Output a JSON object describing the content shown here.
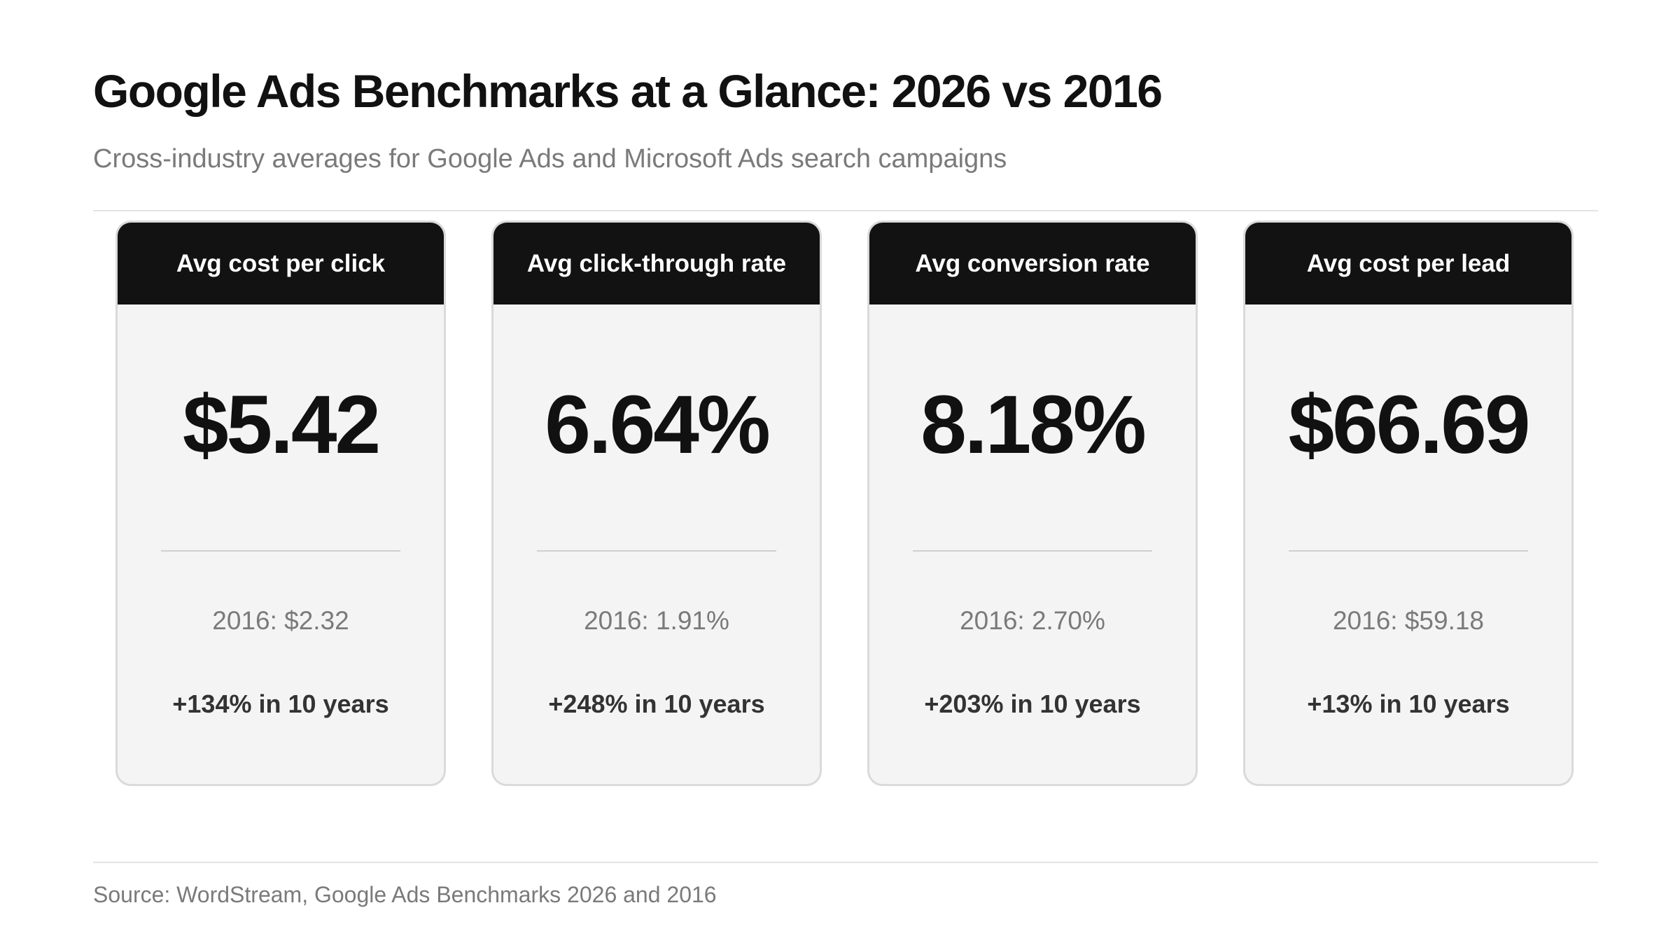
{
  "title": "Google Ads Benchmarks at a Glance: 2026 vs 2016",
  "subtitle": "Cross-industry averages for Google Ads and Microsoft Ads search campaigns",
  "source": "Source: WordStream, Google Ads Benchmarks 2026 and 2016",
  "colors": {
    "header_bg": "#121212",
    "card_bg": "#f4f4f4",
    "card_border": "#dadada",
    "muted_text": "#7a7a7a"
  },
  "chart_data": {
    "type": "table",
    "title": "Google Ads Benchmarks at a Glance: 2026 vs 2016",
    "subtitle": "Cross-industry averages for Google Ads and Microsoft Ads search campaigns",
    "metrics": [
      {
        "label": "Avg cost per click",
        "value_2026": 5.42,
        "value_2016": 2.32,
        "unit": "$",
        "display": "$5.42",
        "prior": "2016: $2.32",
        "change": "+134% in 10 years"
      },
      {
        "label": "Avg click-through rate",
        "value_2026": 6.64,
        "value_2016": 1.91,
        "unit": "%",
        "display": "6.64%",
        "prior": "2016: 1.91%",
        "change": "+248% in 10 years"
      },
      {
        "label": "Avg conversion rate",
        "value_2026": 8.18,
        "value_2016": 2.7,
        "unit": "%",
        "display": "8.18%",
        "prior": "2016: 2.70%",
        "change": "+203% in 10 years"
      },
      {
        "label": "Avg cost per lead",
        "value_2026": 66.69,
        "value_2016": 59.18,
        "unit": "$",
        "display": "$66.69",
        "prior": "2016: $59.18",
        "change": "+13% in 10 years"
      }
    ]
  }
}
